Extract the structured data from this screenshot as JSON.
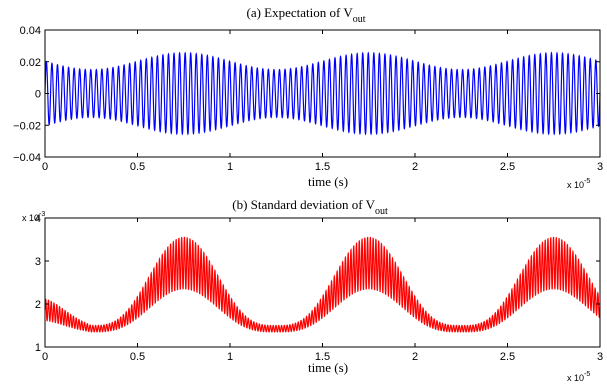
{
  "chart_data": [
    {
      "type": "line",
      "title": "(a) Expectation of V",
      "title_sub": "out",
      "xlabel": "time (s)",
      "x_exponent_label": "x 10",
      "x_exponent_power": "-5",
      "xlim": [
        0,
        3
      ],
      "ylim": [
        -0.04,
        0.04
      ],
      "xticks": [
        0,
        0.5,
        1,
        1.5,
        2,
        2.5,
        3
      ],
      "xtick_labels": [
        "0",
        "0.5",
        "1",
        "1.5",
        "2",
        "2.5",
        "3"
      ],
      "yticks": [
        -0.04,
        -0.02,
        0,
        0.02,
        0.04
      ],
      "ytick_labels": [
        "−0.04",
        "−0.02",
        "0",
        "0.02",
        "0.04"
      ],
      "color": "#0000ff",
      "series": [
        {
          "carrier_cycles": 100,
          "mean": 0,
          "envelope_min": 0.015,
          "envelope_max": 0.0255,
          "envelope_start": 0.0175,
          "envelope_peaks_at": [
            0.75,
            1.75,
            2.75
          ],
          "envelope_troughs_at": [
            0.25,
            1.25,
            2.25
          ]
        }
      ],
      "grid": false
    },
    {
      "type": "line",
      "title": "(b) Standard deviation of V",
      "title_sub": "out",
      "xlabel": "time (s)",
      "x_exponent_label": "x 10",
      "x_exponent_power": "-5",
      "y_exponent_label": "x 10",
      "y_exponent_power": "-3",
      "xlim": [
        0,
        3
      ],
      "ylim": [
        1,
        4
      ],
      "xticks": [
        0,
        0.5,
        1,
        1.5,
        2,
        2.5,
        3
      ],
      "xtick_labels": [
        "0",
        "0.5",
        "1",
        "1.5",
        "2",
        "2.5",
        "3"
      ],
      "yticks": [
        1,
        2,
        3,
        4
      ],
      "ytick_labels": [
        "1",
        "2",
        "3",
        "4"
      ],
      "color": "#ff0000",
      "series": [
        {
          "carrier_cycles": 200,
          "lower_min": 1.35,
          "lower_max": 2.35,
          "upper_min": 1.5,
          "upper_max": 3.55,
          "start_lower": 1.6,
          "start_upper": 2.1,
          "peaks_at": [
            0.75,
            1.75,
            2.75
          ],
          "troughs_at": [
            0.25,
            1.25,
            2.25
          ]
        }
      ],
      "grid": false
    }
  ]
}
